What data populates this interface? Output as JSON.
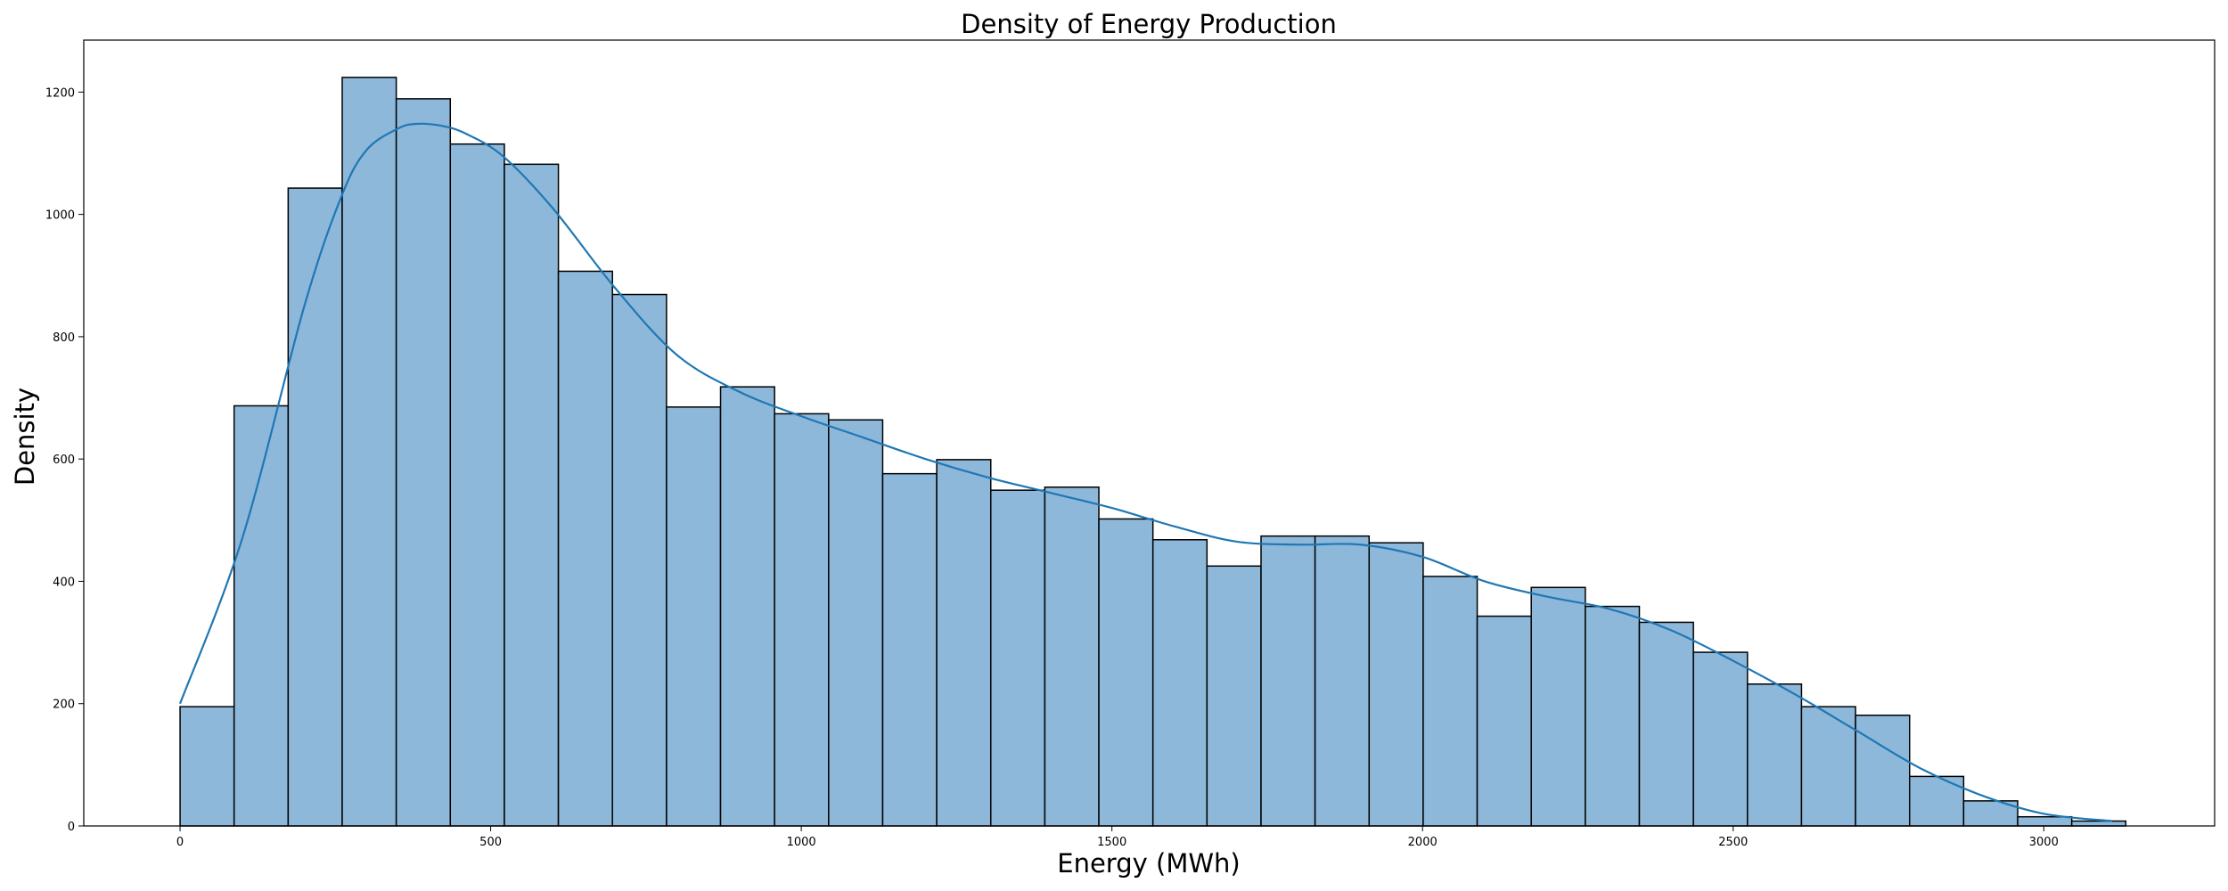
{
  "chart_data": {
    "type": "bar",
    "subtype": "histogram-with-kde",
    "title": "Density of Energy Production",
    "xlabel": "Energy (MWh)",
    "ylabel": "Density",
    "xlim": [
      -155,
      3275
    ],
    "ylim": [
      0,
      1285
    ],
    "xticks": [
      0,
      500,
      1000,
      1500,
      2000,
      2500,
      3000
    ],
    "yticks": [
      0,
      200,
      400,
      600,
      800,
      1000,
      1200
    ],
    "bin_start": 0,
    "bin_width": 87,
    "values": [
      195,
      687,
      1043,
      1224,
      1189,
      1115,
      1082,
      907,
      869,
      685,
      718,
      674,
      664,
      576,
      599,
      549,
      554,
      502,
      468,
      425,
      474,
      474,
      463,
      408,
      343,
      390,
      359,
      333,
      284,
      232,
      195,
      181,
      81,
      41,
      15,
      8
    ],
    "kde": {
      "x": [
        0,
        100,
        200,
        260,
        300,
        350,
        380,
        420,
        460,
        520,
        600,
        700,
        800,
        900,
        1000,
        1100,
        1200,
        1300,
        1400,
        1500,
        1600,
        1700,
        1800,
        1900,
        2000,
        2100,
        2200,
        2300,
        2400,
        2500,
        2600,
        2700,
        2800,
        2900,
        3000,
        3110
      ],
      "y": [
        200,
        470,
        850,
        1030,
        1105,
        1140,
        1148,
        1145,
        1132,
        1095,
        1010,
        880,
        770,
        710,
        670,
        635,
        600,
        570,
        545,
        520,
        490,
        465,
        460,
        460,
        440,
        400,
        375,
        355,
        320,
        270,
        215,
        155,
        95,
        50,
        20,
        8
      ]
    },
    "colors": {
      "bar_fill": "#8DB8DA",
      "bar_edge": "#000000",
      "kde_line": "#1F77B4"
    }
  }
}
